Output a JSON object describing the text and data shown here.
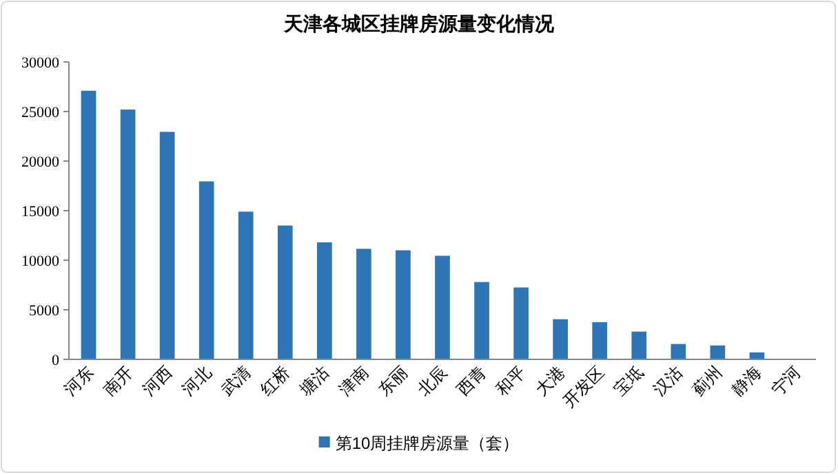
{
  "chart_data": {
    "type": "bar",
    "title": "天津各城区挂牌房源量变化情况",
    "categories": [
      "河东",
      "南开",
      "河西",
      "河北",
      "武清",
      "红桥",
      "塘沽",
      "津南",
      "东丽",
      "北辰",
      "西青",
      "和平",
      "大港",
      "开发区",
      "宝坻",
      "汉沽",
      "蓟州",
      "静海",
      "宁河"
    ],
    "series": [
      {
        "name": "第10周挂牌房源量（套）",
        "color": "#2e75b6",
        "values": [
          27100,
          25200,
          22950,
          17950,
          14900,
          13500,
          11800,
          11150,
          11000,
          10450,
          7800,
          7250,
          4050,
          3750,
          2800,
          1550,
          1400,
          700,
          0
        ]
      }
    ],
    "ylim": [
      0,
      30000
    ],
    "yticks": [
      0,
      5000,
      10000,
      15000,
      20000,
      25000,
      30000
    ],
    "grid": false,
    "legend": "bottom"
  }
}
